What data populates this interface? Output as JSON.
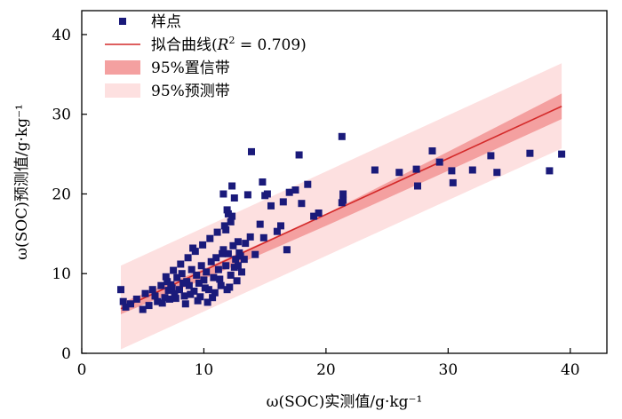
{
  "colors": {
    "points": "#1a1a7a",
    "fit_line": "#d42a2a",
    "ci_band": "#f4a0a0",
    "pi_band": "#fde0e0",
    "axis": "#000000"
  },
  "chart_data": {
    "type": "scatter",
    "xlabel": "ω(SOC)实测值/g·kg⁻¹",
    "ylabel": "ω(SOC)预测值/g·kg⁻¹",
    "xlim": [
      0,
      43
    ],
    "ylim": [
      0,
      43
    ],
    "xticks": [
      0,
      10,
      20,
      30,
      40
    ],
    "yticks": [
      0,
      10,
      20,
      30,
      40
    ],
    "grid": false,
    "legend_position": "top-left",
    "legend": [
      {
        "key": "points",
        "label": "样点"
      },
      {
        "key": "fit",
        "label_prefix": "拟合曲线(",
        "label_r": "R",
        "label_exp": "2",
        "label_suffix": " = 0.709)"
      },
      {
        "key": "ci",
        "label": "95%置信带"
      },
      {
        "key": "pi",
        "label": "95%预测带"
      }
    ],
    "fit_line": {
      "x": [
        3.2,
        39.3
      ],
      "y": [
        5.6,
        31.0
      ]
    },
    "confidence_band": {
      "x": [
        3.2,
        10.0,
        20.0,
        30.0,
        39.3
      ],
      "upper": [
        6.3,
        10.6,
        17.5,
        25.3,
        32.6
      ],
      "lower": [
        4.9,
        9.3,
        16.0,
        22.9,
        29.4
      ]
    },
    "prediction_band": {
      "x": [
        3.2,
        39.3
      ],
      "upper": [
        11.0,
        36.4
      ],
      "lower": [
        0.5,
        25.7
      ]
    },
    "series": [
      {
        "x": [
          3.2,
          3.4,
          3.6,
          4.0,
          4.5,
          5.0,
          5.2,
          5.5,
          5.8,
          6.0,
          6.2,
          6.5,
          6.8,
          7.0,
          7.2,
          7.4,
          7.6,
          7.8,
          8.0,
          8.2,
          8.4,
          8.6,
          8.8,
          9.0,
          9.2,
          9.4,
          9.6,
          9.8,
          10.0,
          10.2,
          10.4,
          10.6,
          10.8,
          11.0,
          11.2,
          11.4,
          11.6,
          11.8,
          12.0,
          12.2,
          12.4,
          12.6,
          12.8,
          13.0,
          6.6,
          7.1,
          7.7,
          8.3,
          8.9,
          9.5,
          10.1,
          10.7,
          11.3,
          11.9,
          12.5,
          13.1,
          6.9,
          7.5,
          8.1,
          8.7,
          9.3,
          9.9,
          10.5,
          11.1,
          11.7,
          12.3,
          12.9,
          7.3,
          8.5,
          9.7,
          10.9,
          12.1,
          13.3,
          9.1,
          10.3,
          11.5,
          12.7,
          11.6,
          11.9,
          12.2,
          12.0,
          11.8,
          12.5,
          12.3,
          12.8,
          13.4,
          13.8,
          14.2,
          14.6,
          15.0,
          15.5,
          16.0,
          16.5,
          17.0,
          17.5,
          18.0,
          18.5,
          19.0,
          19.4,
          13.9,
          14.8,
          15.2,
          16.3,
          17.8,
          21.3,
          21.4,
          21.4,
          21.3,
          24.0,
          26.0,
          27.4,
          27.5,
          28.7,
          29.3,
          30.3,
          30.4,
          32.0,
          33.5,
          34.0,
          36.7,
          38.3,
          39.3,
          13.6,
          14.9,
          16.8
        ],
        "y": [
          8.0,
          6.5,
          5.8,
          6.2,
          6.8,
          5.5,
          7.5,
          6.0,
          8.0,
          7.2,
          6.5,
          8.5,
          7.0,
          9.0,
          6.8,
          8.2,
          7.5,
          9.5,
          8.0,
          10.0,
          7.2,
          9.0,
          8.5,
          10.5,
          7.8,
          9.8,
          8.8,
          11.0,
          9.2,
          10.2,
          8.0,
          11.5,
          9.5,
          12.0,
          10.5,
          8.5,
          13.0,
          11.0,
          12.5,
          9.8,
          13.5,
          11.8,
          14.0,
          12.2,
          6.3,
          7.9,
          6.9,
          8.8,
          7.4,
          6.6,
          8.2,
          7.0,
          9.3,
          8.0,
          10.8,
          10.2,
          9.6,
          10.4,
          11.2,
          12.0,
          12.8,
          13.6,
          14.4,
          15.2,
          16.0,
          17.2,
          12.6,
          8.6,
          6.2,
          7.1,
          7.6,
          8.3,
          11.8,
          13.2,
          6.4,
          12.5,
          9.1,
          20.0,
          18.0,
          16.5,
          17.5,
          15.5,
          19.5,
          21.0,
          11.0,
          13.8,
          14.6,
          12.4,
          16.2,
          19.8,
          18.5,
          15.3,
          19.0,
          20.2,
          20.5,
          18.8,
          21.2,
          17.2,
          17.6,
          25.3,
          21.5,
          20.0,
          16.0,
          24.9,
          27.2,
          20.0,
          19.2,
          18.9,
          23.0,
          22.7,
          23.1,
          21.0,
          25.4,
          24.0,
          22.9,
          21.4,
          23.0,
          24.8,
          22.7,
          25.1,
          22.9,
          25.0,
          19.9,
          14.5,
          13.0
        ]
      }
    ]
  }
}
